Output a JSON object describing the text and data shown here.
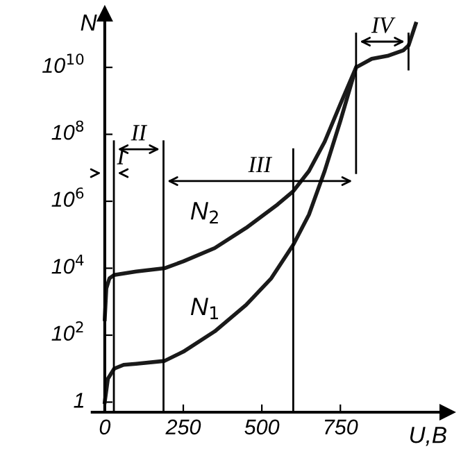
{
  "chart_data": {
    "type": "line",
    "xlabel": "U,B",
    "ylabel": "N",
    "log": "y",
    "grid": false,
    "legend": false,
    "marker": "none",
    "line_style": "solid",
    "xlim": [
      -40,
      1090
    ],
    "ylim": [
      0.5,
      400000000000
    ],
    "xticks": [
      0,
      250,
      500,
      750
    ],
    "yticks": [
      {
        "value": 1,
        "label": "1"
      },
      {
        "value": 100,
        "label": "10$^{2}$"
      },
      {
        "value": 10000,
        "label": "10$^{4}$"
      },
      {
        "value": 1000000,
        "label": "10$^{6}$"
      },
      {
        "value": 100000000,
        "label": "10$^{8}$"
      },
      {
        "value": 10000000000,
        "label": "10$^{10}$"
      }
    ],
    "series": [
      {
        "color": "#1a1a1a",
        "x": [
          0,
          10,
          30,
          60,
          100,
          190,
          250,
          350,
          450,
          530,
          600,
          650,
          700,
          750,
          800,
          850,
          900,
          950,
          967,
          990
        ],
        "values": [
          1,
          5,
          10,
          13,
          14,
          17,
          32,
          130,
          800,
          5000,
          50000,
          400000,
          8000000,
          250000000,
          10000000000,
          18000000000,
          22000000000,
          32000000000,
          45000000000,
          200000000000
        ]
      },
      {
        "color": "#1a1a1a",
        "x": [
          0,
          5,
          15,
          30,
          100,
          190,
          250,
          350,
          450,
          550,
          600,
          650,
          700,
          750,
          800
        ],
        "values": [
          300,
          2500,
          5000,
          6300,
          8000,
          10000,
          16000,
          40000,
          160000,
          800000,
          2000000,
          8000000,
          60000000,
          800000000,
          10000000000
        ]
      }
    ],
    "annotations": [
      "N$_{1}$",
      "N$_{2}$",
      "I",
      "II",
      "III",
      "IV"
    ],
    "ref_lines": [
      {
        "axis": "x",
        "value": 29,
        "label": null
      },
      {
        "axis": "x",
        "value": 187,
        "label": null
      },
      {
        "axis": "x",
        "value": 600,
        "label": null
      },
      {
        "axis": "x",
        "value": 800,
        "label": null
      },
      {
        "axis": "x",
        "value": 967,
        "label": null
      }
    ]
  }
}
